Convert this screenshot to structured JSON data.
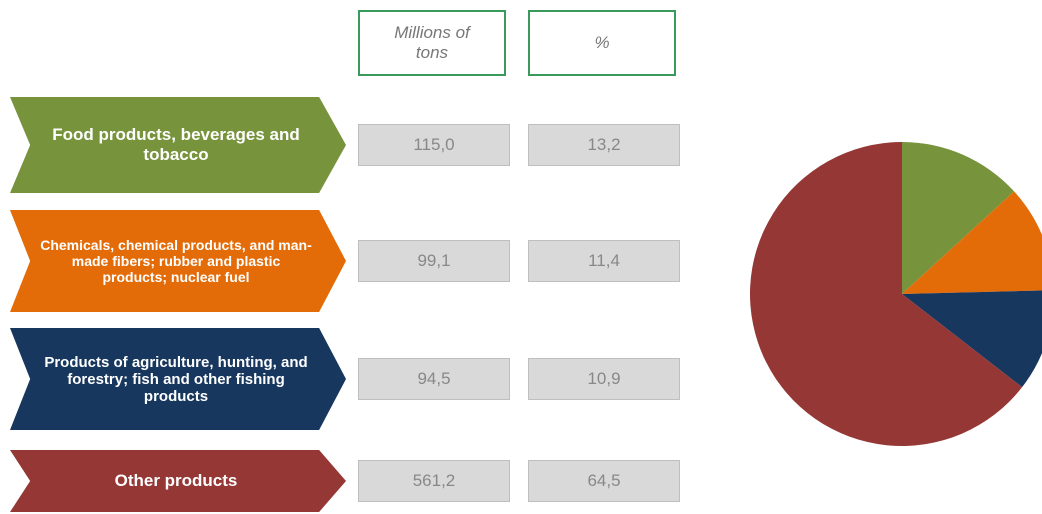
{
  "chart_data": {
    "type": "pie",
    "column_headers": [
      "Millions of tons",
      "%"
    ],
    "categories": [
      "Food products, beverages and tobacco",
      "Chemicals, chemical products, and man-made fibers; rubber and plastic products; nuclear fuel",
      "Products of agriculture, hunting, and forestry; fish and other fishing products",
      "Other products"
    ],
    "tons": [
      115.0,
      99.1,
      94.5,
      561.2
    ],
    "tons_labels": [
      "115,0",
      "99,1",
      "94,5",
      "561,2"
    ],
    "values": [
      13.2,
      11.4,
      10.9,
      64.5
    ],
    "value_labels": [
      "13,2",
      "11,4",
      "10,9",
      "64,5"
    ],
    "colors": [
      "#77933c",
      "#e36c09",
      "#17375e",
      "#953735"
    ]
  }
}
